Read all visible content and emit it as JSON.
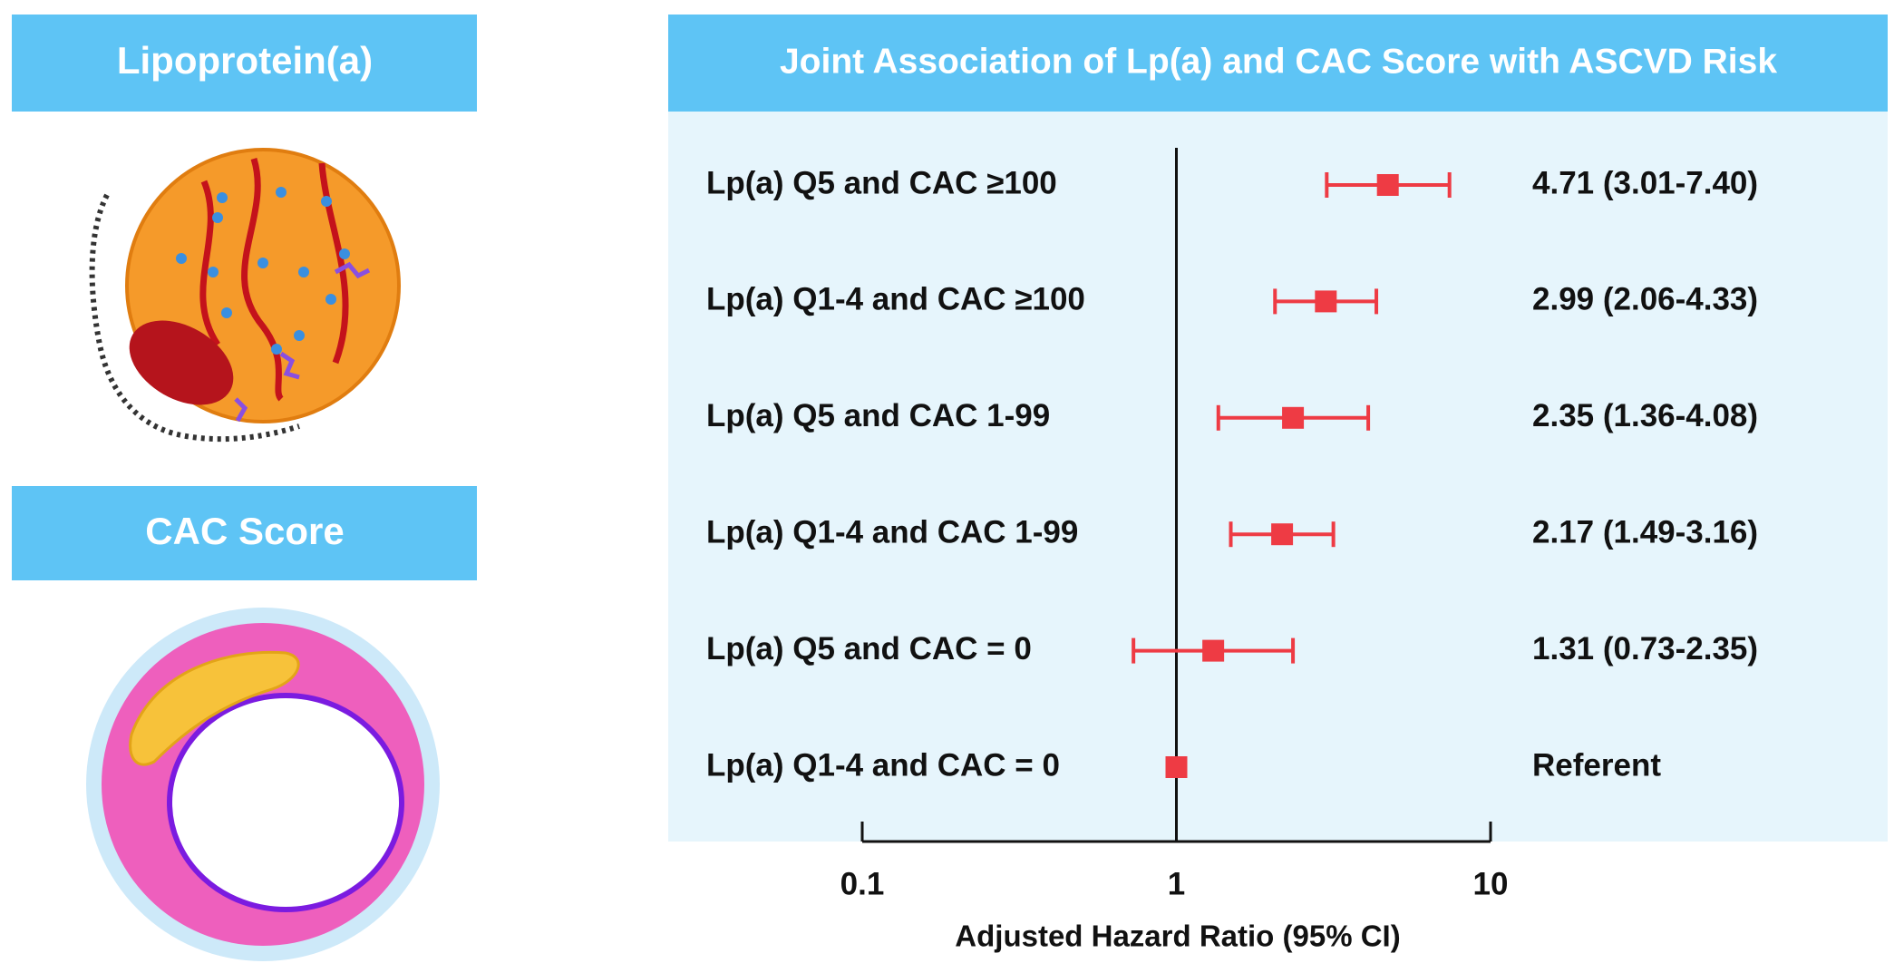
{
  "sidebar": {
    "panels": [
      {
        "title": "Lipoprotein(a)"
      },
      {
        "title": "CAC Score"
      }
    ]
  },
  "chart_data": {
    "type": "forest",
    "title": "Joint Association of Lp(a) and CAC Score with ASCVD Risk",
    "x_label": "Adjusted Hazard Ratio (95% CI)",
    "categories": [
      "Lp(a) Q5 and CAC ≥100",
      "Lp(a) Q1-4 and CAC ≥100",
      "Lp(a) Q5 and CAC 1-99",
      "Lp(a) Q1-4 and CAC 1-99",
      "Lp(a) Q5 and CAC = 0",
      "Lp(a) Q1-4 and CAC = 0"
    ],
    "values": [
      4.71,
      2.99,
      2.35,
      2.17,
      1.31,
      1
    ],
    "lower": [
      3.01,
      2.06,
      1.36,
      1.49,
      0.73,
      null
    ],
    "upper": [
      7.4,
      4.33,
      4.08,
      3.16,
      2.35,
      null
    ],
    "value_labels": [
      "4.71 (3.01-7.40)",
      "2.99 (2.06-4.33)",
      "2.35 (1.36-4.08)",
      "2.17 (1.49-3.16)",
      "1.31 (0.73-2.35)",
      "Referent"
    ],
    "color": "#ee3b44",
    "reference_line": 1,
    "log_x": true,
    "xlim": [
      0.1,
      10
    ],
    "xticks": [
      0.1,
      1,
      10
    ]
  }
}
